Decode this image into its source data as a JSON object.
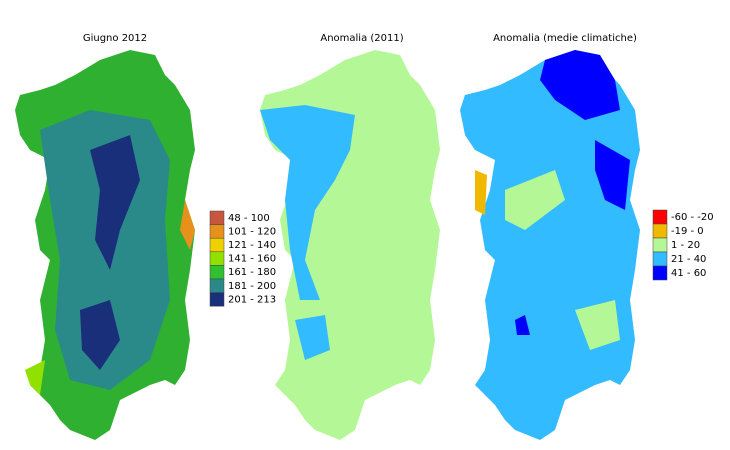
{
  "maps": [
    {
      "title": "Giugno 2012"
    },
    {
      "title": "Anomalia (2011)"
    },
    {
      "title": "Anomalia (medie climatiche)"
    }
  ],
  "legends": [
    {
      "items": [
        {
          "label": "48 - 100",
          "color": "#c8553d"
        },
        {
          "label": "101 - 120",
          "color": "#e8901c"
        },
        {
          "label": "121 - 140",
          "color": "#f0d000"
        },
        {
          "label": "141 - 160",
          "color": "#90e000"
        },
        {
          "label": "161 - 180",
          "color": "#30c030"
        },
        {
          "label": "181 - 200",
          "color": "#2a8a8a"
        },
        {
          "label": "201 - 213",
          "color": "#1a2f7a"
        }
      ]
    },
    {
      "items": [
        {
          "label": "-60 - -20",
          "color": "#ff0000"
        },
        {
          "label": "-19 - 0",
          "color": "#f0b800"
        },
        {
          "label": "1 - 20",
          "color": "#b4f796"
        },
        {
          "label": "21 - 40",
          "color": "#33bbff"
        },
        {
          "label": "41 - 60",
          "color": "#0000ff"
        }
      ]
    }
  ]
}
